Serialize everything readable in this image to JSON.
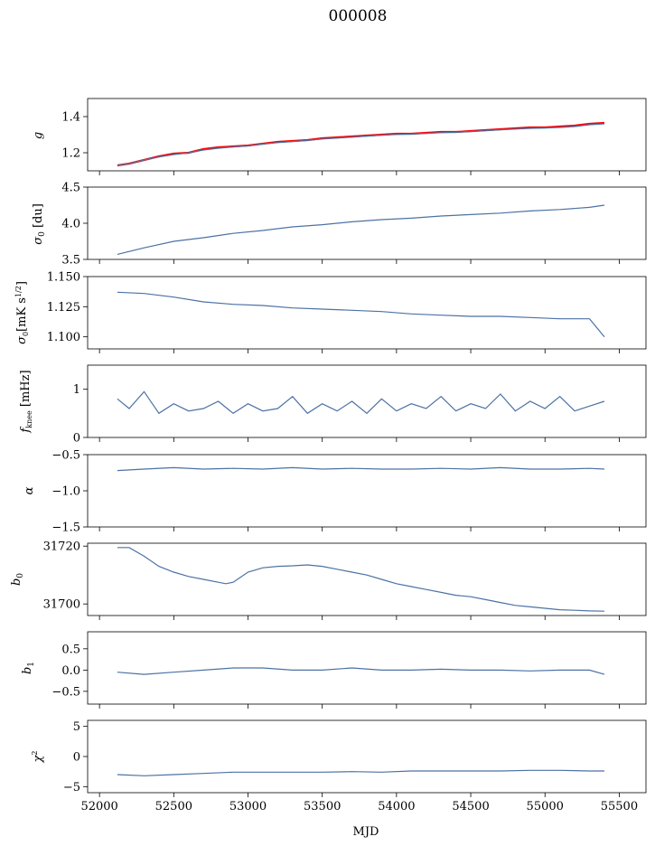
{
  "figure": {
    "title": "000008",
    "xlabel": "MJD"
  },
  "chart_data": [
    {
      "type": "line",
      "ylabel": "g",
      "xlim": [
        51920,
        55680
      ],
      "ylim": [
        1.1,
        1.5
      ],
      "yticks": [
        1.2,
        1.4
      ],
      "ytick_labels": [
        "1.2",
        "1.4"
      ],
      "series": [
        {
          "color": "#ff0000",
          "x": [
            52120,
            52200,
            52300,
            52400,
            52500,
            52600,
            52700,
            52800,
            52900,
            53000,
            53100,
            53200,
            53300,
            53400,
            53500,
            53600,
            53700,
            53800,
            53900,
            54000,
            54100,
            54200,
            54300,
            54400,
            54500,
            54600,
            54700,
            54800,
            54900,
            55000,
            55100,
            55200,
            55300,
            55400
          ],
          "y": [
            1.13,
            1.14,
            1.16,
            1.18,
            1.195,
            1.2,
            1.22,
            1.23,
            1.235,
            1.24,
            1.25,
            1.26,
            1.265,
            1.27,
            1.28,
            1.285,
            1.29,
            1.295,
            1.3,
            1.305,
            1.305,
            1.31,
            1.315,
            1.315,
            1.32,
            1.325,
            1.33,
            1.335,
            1.34,
            1.34,
            1.345,
            1.35,
            1.36,
            1.365
          ]
        },
        {
          "color": "#4c72a4",
          "x": [
            52120,
            52200,
            52300,
            52400,
            52500,
            52600,
            52700,
            52800,
            52900,
            53000,
            53100,
            53200,
            53300,
            53400,
            53500,
            53600,
            53700,
            53800,
            53900,
            54000,
            54100,
            54200,
            54300,
            54400,
            54500,
            54600,
            54700,
            54800,
            54900,
            55000,
            55100,
            55200,
            55300,
            55400
          ],
          "y": [
            1.13,
            1.14,
            1.16,
            1.177,
            1.19,
            1.2,
            1.215,
            1.225,
            1.232,
            1.238,
            1.248,
            1.256,
            1.262,
            1.268,
            1.276,
            1.281,
            1.286,
            1.292,
            1.297,
            1.301,
            1.303,
            1.307,
            1.311,
            1.313,
            1.317,
            1.322,
            1.327,
            1.331,
            1.335,
            1.337,
            1.34,
            1.345,
            1.355,
            1.36
          ]
        }
      ]
    },
    {
      "type": "line",
      "ylabel": "σ0 [du]",
      "xlim": [
        51920,
        55680
      ],
      "ylim": [
        3.5,
        4.5
      ],
      "yticks": [
        3.5,
        4.0,
        4.5
      ],
      "ytick_labels": [
        "3.5",
        "4.0",
        "4.5"
      ],
      "series": [
        {
          "color": "#4c72a4",
          "x": [
            52120,
            52300,
            52500,
            52700,
            52900,
            53100,
            53300,
            53500,
            53700,
            53900,
            54100,
            54300,
            54500,
            54700,
            54900,
            55100,
            55300,
            55400
          ],
          "y": [
            3.57,
            3.66,
            3.75,
            3.8,
            3.86,
            3.9,
            3.95,
            3.98,
            4.02,
            4.05,
            4.07,
            4.1,
            4.12,
            4.14,
            4.17,
            4.19,
            4.22,
            4.25
          ]
        }
      ]
    },
    {
      "type": "line",
      "ylabel": "σ0[mK s1/2]",
      "xlim": [
        51920,
        55680
      ],
      "ylim": [
        1.09,
        1.15
      ],
      "yticks": [
        1.1,
        1.125,
        1.15
      ],
      "ytick_labels": [
        "1.100",
        "1.125",
        "1.150"
      ],
      "series": [
        {
          "color": "#4c72a4",
          "x": [
            52120,
            52300,
            52500,
            52700,
            52900,
            53100,
            53300,
            53500,
            53700,
            53900,
            54100,
            54300,
            54500,
            54700,
            54900,
            55100,
            55300,
            55400
          ],
          "y": [
            1.137,
            1.136,
            1.133,
            1.129,
            1.127,
            1.126,
            1.124,
            1.123,
            1.122,
            1.121,
            1.119,
            1.118,
            1.117,
            1.117,
            1.116,
            1.115,
            1.115,
            1.1
          ]
        }
      ]
    },
    {
      "type": "line",
      "ylabel": "fknee [mHz]",
      "xlim": [
        51920,
        55680
      ],
      "ylim": [
        0,
        1.5
      ],
      "yticks": [
        0,
        1
      ],
      "ytick_labels": [
        "0",
        "1"
      ],
      "series": [
        {
          "color": "#4c72a4",
          "x": [
            52120,
            52200,
            52300,
            52400,
            52500,
            52600,
            52700,
            52800,
            52900,
            53000,
            53100,
            53200,
            53300,
            53400,
            53500,
            53600,
            53700,
            53800,
            53900,
            54000,
            54100,
            54200,
            54300,
            54400,
            54500,
            54600,
            54700,
            54800,
            54900,
            55000,
            55100,
            55200,
            55300,
            55400
          ],
          "y": [
            0.8,
            0.6,
            0.95,
            0.5,
            0.7,
            0.55,
            0.6,
            0.75,
            0.5,
            0.7,
            0.55,
            0.6,
            0.85,
            0.5,
            0.7,
            0.55,
            0.75,
            0.5,
            0.8,
            0.55,
            0.7,
            0.6,
            0.85,
            0.55,
            0.7,
            0.6,
            0.9,
            0.55,
            0.75,
            0.6,
            0.85,
            0.55,
            0.65,
            0.75
          ]
        }
      ]
    },
    {
      "type": "line",
      "ylabel": "α",
      "xlim": [
        51920,
        55680
      ],
      "ylim": [
        -1.5,
        -0.5
      ],
      "yticks": [
        -1.5,
        -1.0,
        -0.5
      ],
      "ytick_labels": [
        "−1.5",
        "−1.0",
        "−0.5"
      ],
      "series": [
        {
          "color": "#4c72a4",
          "x": [
            52120,
            52300,
            52500,
            52700,
            52900,
            53100,
            53300,
            53500,
            53700,
            53900,
            54100,
            54300,
            54500,
            54700,
            54900,
            55100,
            55300,
            55400
          ],
          "y": [
            -0.72,
            -0.7,
            -0.68,
            -0.7,
            -0.69,
            -0.7,
            -0.68,
            -0.7,
            -0.69,
            -0.7,
            -0.7,
            -0.69,
            -0.7,
            -0.68,
            -0.7,
            -0.7,
            -0.69,
            -0.7
          ]
        }
      ]
    },
    {
      "type": "line",
      "ylabel": "b0",
      "xlim": [
        51920,
        55680
      ],
      "ylim": [
        31696,
        31721
      ],
      "yticks": [
        31700,
        31720
      ],
      "ytick_labels": [
        "31700",
        "31720"
      ],
      "series": [
        {
          "color": "#4c72a4",
          "x": [
            52120,
            52200,
            52300,
            52400,
            52500,
            52600,
            52700,
            52800,
            52850,
            52900,
            53000,
            53100,
            53200,
            53300,
            53400,
            53500,
            53600,
            53700,
            53800,
            53900,
            54000,
            54100,
            54200,
            54300,
            54400,
            54500,
            54600,
            54700,
            54800,
            54900,
            55000,
            55100,
            55200,
            55300,
            55400
          ],
          "y": [
            31719.5,
            31719.5,
            31716.5,
            31713,
            31711,
            31709.5,
            31708.5,
            31707.5,
            31707,
            31707.5,
            31711,
            31712.5,
            31713,
            31713.2,
            31713.5,
            31713,
            31712,
            31711,
            31710,
            31708.5,
            31707,
            31706,
            31705,
            31704,
            31703,
            31702.5,
            31701.5,
            31700.5,
            31699.5,
            31699,
            31698.5,
            31698,
            31697.8,
            31697.6,
            31697.5
          ]
        }
      ]
    },
    {
      "type": "line",
      "ylabel": "b1",
      "xlim": [
        51920,
        55680
      ],
      "ylim": [
        -0.8,
        0.9
      ],
      "yticks": [
        -0.5,
        0.0,
        0.5
      ],
      "ytick_labels": [
        "−0.5",
        "0.0",
        "0.5"
      ],
      "series": [
        {
          "color": "#4c72a4",
          "x": [
            52120,
            52300,
            52500,
            52700,
            52900,
            53100,
            53300,
            53500,
            53700,
            53900,
            54100,
            54300,
            54500,
            54700,
            54900,
            55100,
            55300,
            55400
          ],
          "y": [
            -0.05,
            -0.1,
            -0.05,
            0.0,
            0.05,
            0.05,
            0.0,
            0.0,
            0.05,
            0.0,
            0.0,
            0.02,
            0.0,
            0.0,
            -0.02,
            0.0,
            0.0,
            -0.1
          ]
        }
      ]
    },
    {
      "type": "line",
      "ylabel": "χ2",
      "xlim": [
        51920,
        55680
      ],
      "ylim": [
        -6,
        6
      ],
      "yticks": [
        -5,
        0,
        5
      ],
      "ytick_labels": [
        "−5",
        "0",
        "5"
      ],
      "xticks": [
        52000,
        52500,
        53000,
        53500,
        54000,
        54500,
        55000,
        55500
      ],
      "xtick_labels": [
        "52000",
        "52500",
        "53000",
        "53500",
        "54000",
        "54500",
        "55000",
        "55500"
      ],
      "series": [
        {
          "color": "#4c72a4",
          "x": [
            52120,
            52300,
            52500,
            52700,
            52900,
            53100,
            53300,
            53500,
            53700,
            53900,
            54100,
            54300,
            54500,
            54700,
            54900,
            55100,
            55300,
            55400
          ],
          "y": [
            -3,
            -3.2,
            -3,
            -2.8,
            -2.6,
            -2.6,
            -2.6,
            -2.6,
            -2.5,
            -2.6,
            -2.4,
            -2.4,
            -2.4,
            -2.4,
            -2.3,
            -2.3,
            -2.4,
            -2.4
          ]
        }
      ]
    }
  ]
}
